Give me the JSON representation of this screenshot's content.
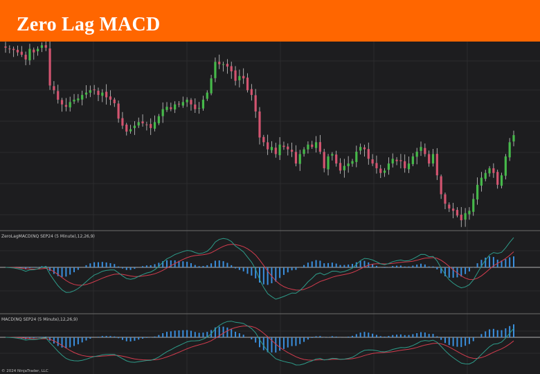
{
  "banner": {
    "title": "Zero Lag MACD"
  },
  "colors": {
    "background": "#1d1d1f",
    "banner": "#ff6600",
    "grid": "#2c2c2e",
    "panel_divider": "#6e6e6e",
    "up": "#46b94a",
    "down": "#d35470",
    "wick": "#cfcfcf",
    "macd_line": "#2e9c8a",
    "signal_line": "#d43c4e",
    "histogram": "#3a8fde",
    "zero_line": "#e6e6e6"
  },
  "footer": {
    "copyright": "© 2024 NinjaTrader, LLC"
  },
  "chart_data": [
    {
      "type": "candlestick",
      "panel": "price",
      "instrument": "NQ SEP24 (5 Minute)",
      "y_range": [
        0,
        100
      ],
      "grid": true,
      "close": [
        96,
        95,
        94,
        92,
        90,
        86,
        95,
        92,
        95,
        98,
        96,
        64,
        60,
        52,
        48,
        46,
        50,
        52,
        53,
        56,
        58,
        60,
        60,
        56,
        58,
        54,
        52,
        49,
        36,
        30,
        25,
        27,
        30,
        33,
        32,
        31,
        28,
        33,
        38,
        44,
        46,
        44,
        48,
        48,
        50,
        52,
        48,
        44,
        45,
        52,
        58,
        70,
        84,
        82,
        82,
        80,
        76,
        68,
        72,
        70,
        60,
        56,
        42,
        20,
        16,
        10,
        12,
        6,
        14,
        12,
        10,
        8,
        -2,
        6,
        10,
        14,
        12,
        16,
        8,
        -6,
        4,
        6,
        -2,
        -8,
        -4,
        -2,
        0,
        8,
        12,
        10,
        2,
        -2,
        -6,
        -10,
        -8,
        -2,
        2,
        0,
        0,
        -6,
        -2,
        4,
        8,
        12,
        6,
        -2,
        6,
        -12,
        -28,
        -36,
        -40,
        -42,
        -46,
        -50,
        -44,
        -42,
        -32,
        -20,
        -14,
        -10,
        -6,
        -10,
        -20,
        -12,
        4,
        16,
        22
      ],
      "ma_zero_lag": "MACD(12,26,9)"
    },
    {
      "type": "line+histogram",
      "panel": "indicator",
      "label": "ZeroLagMACD(NQ SEP24 (5 Minute),12,26,9)",
      "series": [
        {
          "name": "MACD",
          "role": "macd_line"
        },
        {
          "name": "Signal",
          "role": "signal_line"
        },
        {
          "name": "Histogram",
          "role": "histogram"
        }
      ]
    },
    {
      "type": "line+histogram",
      "panel": "indicator",
      "label": "MACD(NQ SEP24 (5 Minute),12,26,9)",
      "series": [
        {
          "name": "MACD",
          "role": "macd_line"
        },
        {
          "name": "Signal",
          "role": "signal_line"
        },
        {
          "name": "Histogram",
          "role": "histogram"
        }
      ]
    }
  ]
}
